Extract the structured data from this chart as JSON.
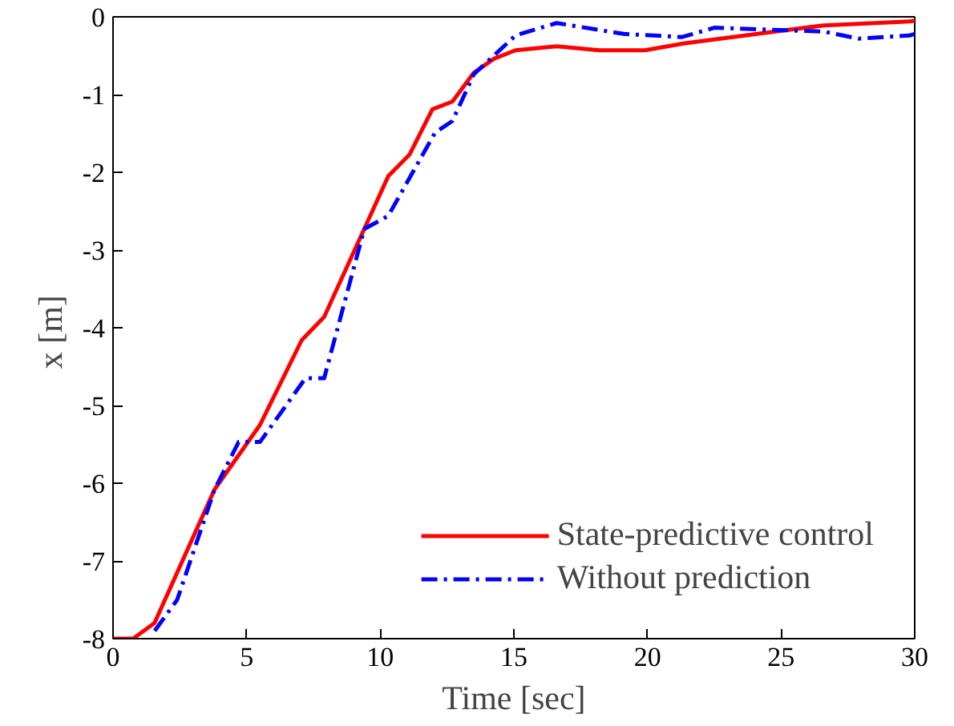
{
  "chart_data": {
    "type": "line",
    "xlabel": "Time [sec]",
    "ylabel": "x  [m]",
    "xlim": [
      0,
      30
    ],
    "ylim": [
      -8,
      0
    ],
    "xticks": [
      0,
      5,
      10,
      15,
      20,
      25,
      30
    ],
    "yticks": [
      -8,
      -7,
      -6,
      -5,
      -4,
      -3,
      -2,
      -1,
      0
    ],
    "grid": false,
    "legend": "bottom right",
    "series": [
      {
        "name": "State-predictive control",
        "color": "#ff0000",
        "line_style": "solid",
        "x": [
          0,
          0.75,
          1.55,
          3.8,
          5.5,
          7.06,
          7.9,
          10.3,
          11.1,
          11.95,
          12.7,
          13.5,
          14.25,
          15.06,
          16.6,
          18.2,
          19.9,
          21.4,
          24.75,
          26.6,
          29.8,
          30
        ],
        "values": [
          -8,
          -8,
          -7.8,
          -6.08,
          -5.25,
          -4.16,
          -3.86,
          -2.05,
          -1.77,
          -1.19,
          -1.09,
          -0.72,
          -0.54,
          -0.43,
          -0.38,
          -0.43,
          -0.43,
          -0.34,
          -0.19,
          -0.11,
          -0.06,
          -0.05
        ]
      },
      {
        "name": "Without prediction",
        "color": "#0000ff",
        "line_style": "dashdot",
        "x": [
          1.56,
          2.4,
          3.8,
          4.7,
          5.5,
          7.2,
          7.9,
          9.4,
          10.3,
          12.05,
          12.7,
          13.5,
          15.06,
          16.6,
          19.1,
          21.3,
          22.5,
          26.6,
          27.9,
          29.8,
          30
        ],
        "values": [
          -7.9,
          -7.5,
          -6.08,
          -5.47,
          -5.47,
          -4.65,
          -4.65,
          -2.73,
          -2.56,
          -1.49,
          -1.34,
          -0.74,
          -0.24,
          -0.08,
          -0.22,
          -0.26,
          -0.14,
          -0.19,
          -0.28,
          -0.24,
          -0.22
        ]
      }
    ]
  }
}
